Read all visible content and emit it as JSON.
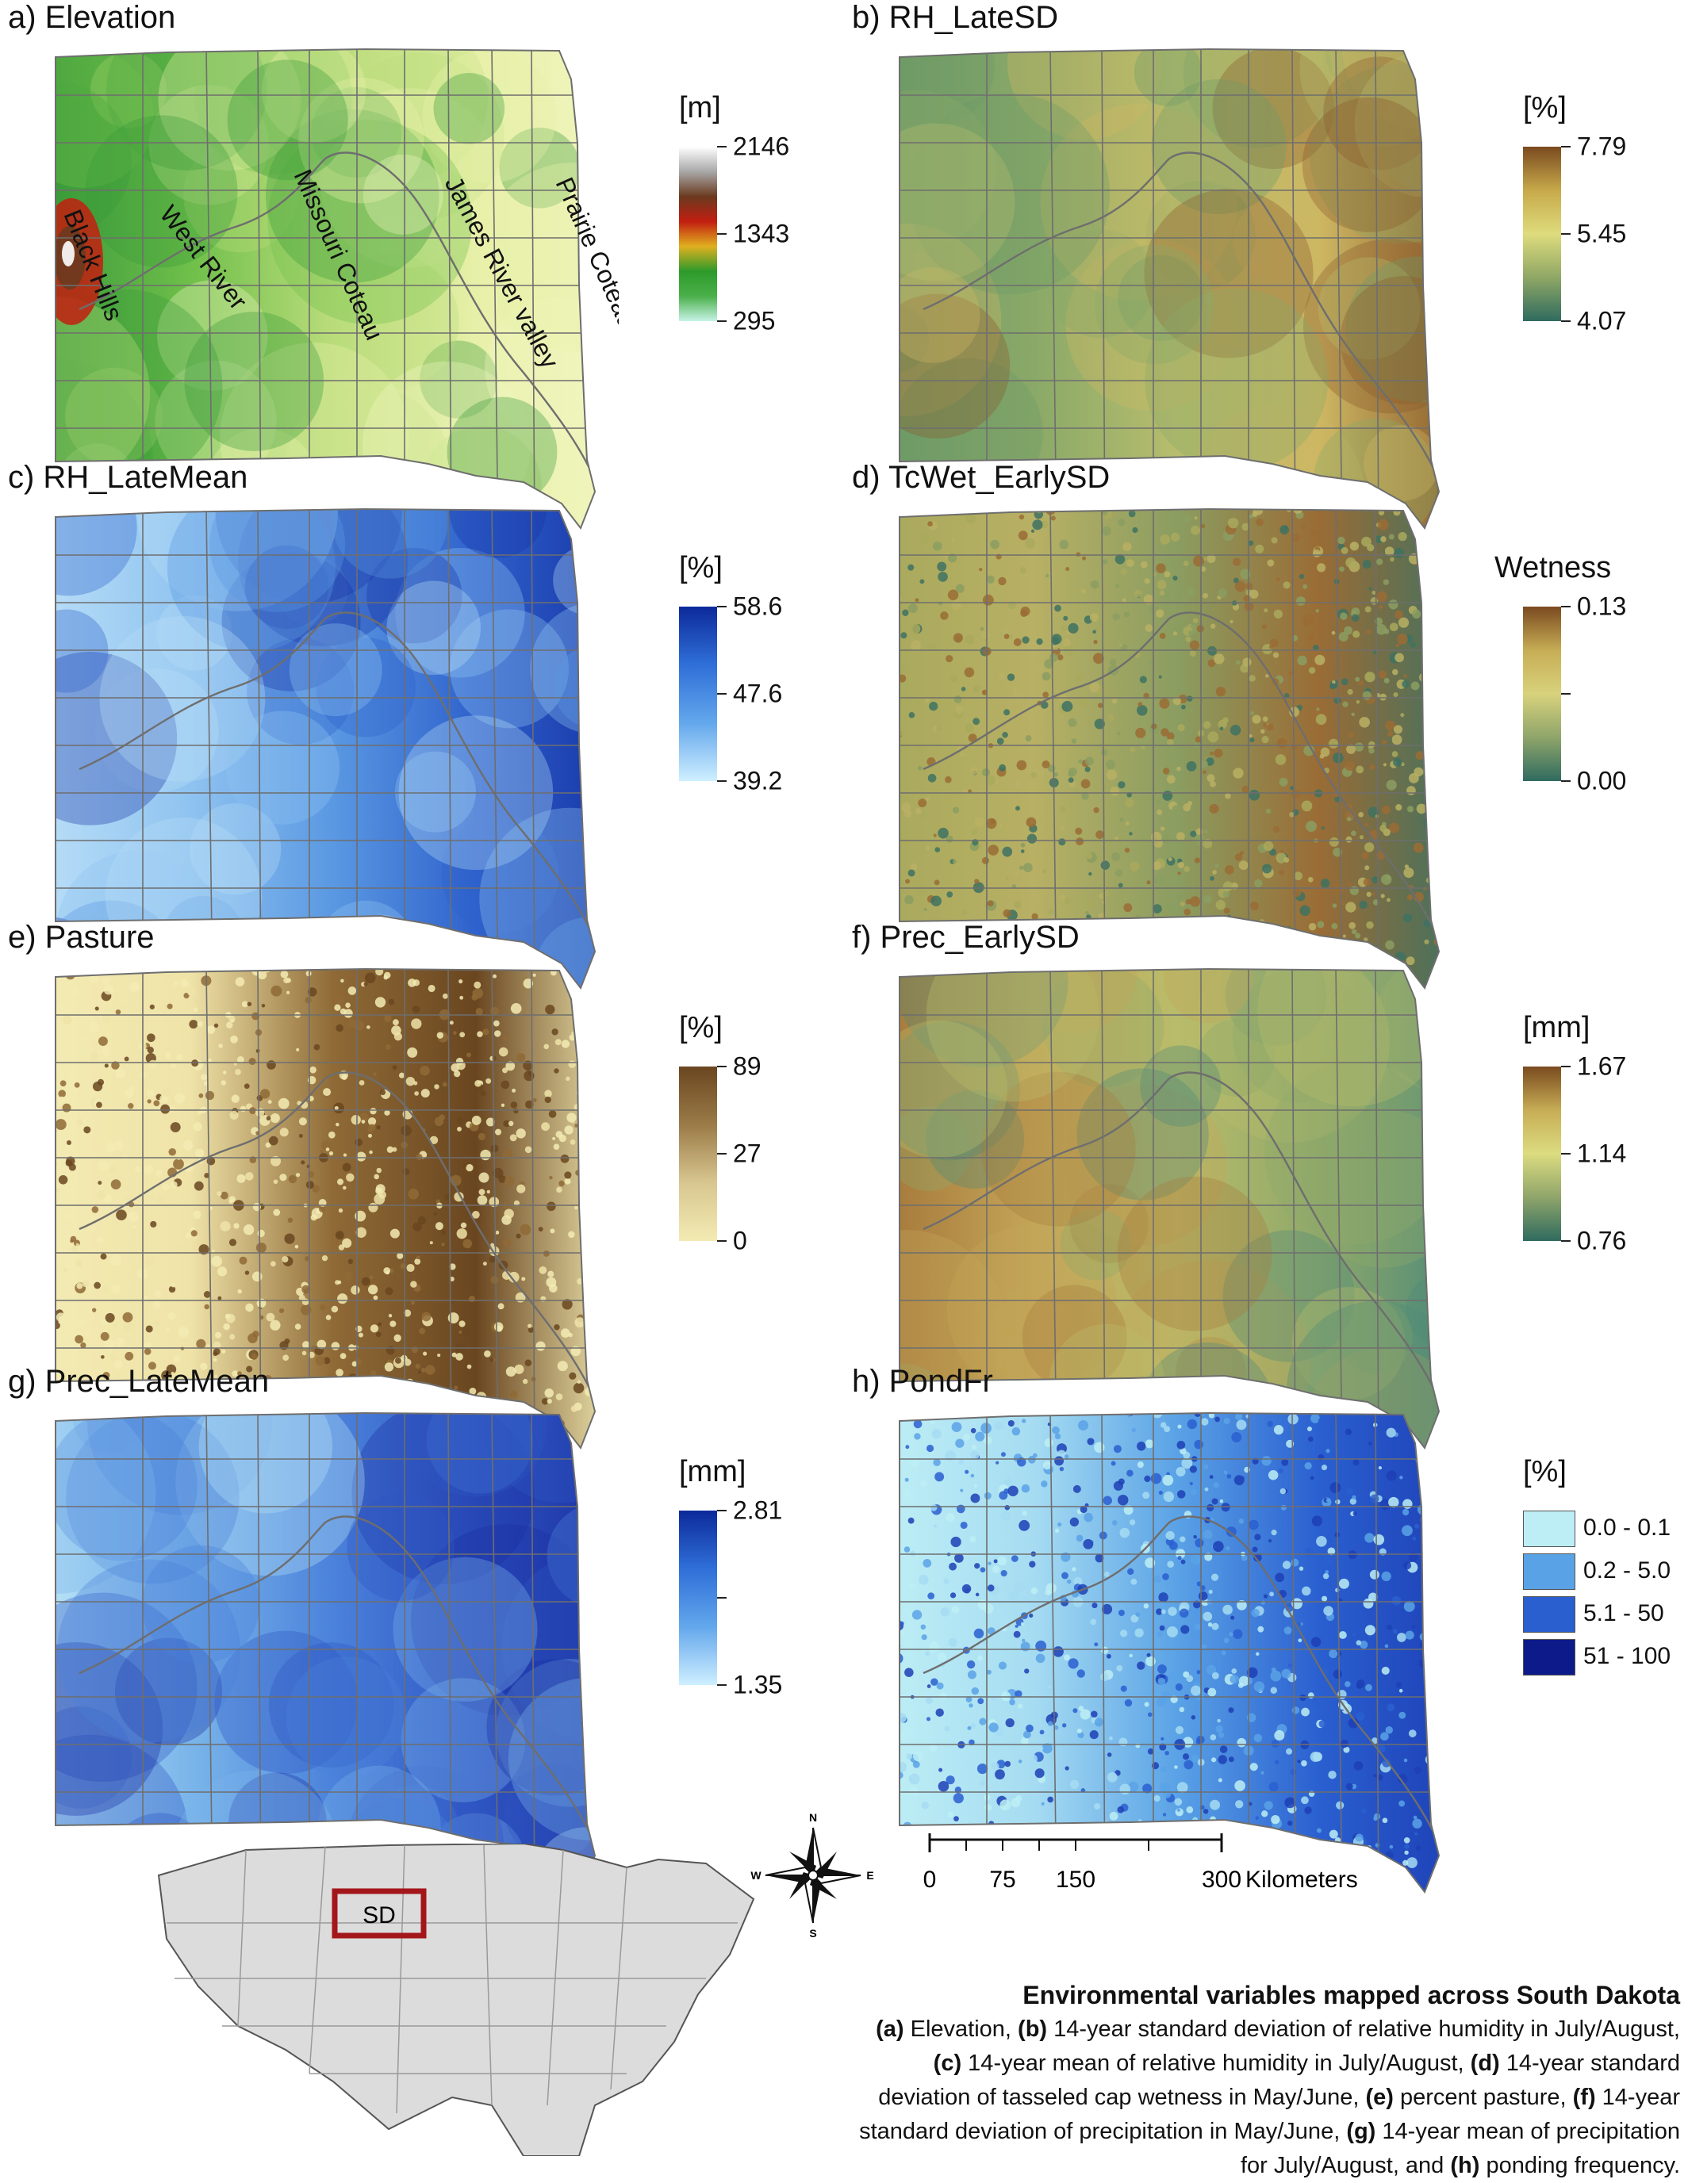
{
  "panels": [
    {
      "title": "a) Elevation",
      "unit": "[m]",
      "legend_type": "gradient",
      "legend_labels": [
        "2146",
        "1343",
        "295"
      ],
      "colors": [
        "#ffffff",
        "#a8a8a8",
        "#6b3a1f",
        "#c21e10",
        "#e0b020",
        "#2d9a2a",
        "#4bb04a",
        "#c6f3e6"
      ],
      "map_colors": [
        "#3a9a3a",
        "#6fbf4a",
        "#b9dc7a",
        "#e7f0a8",
        "#f2f5c0"
      ],
      "region_labels": [
        "Black Hills",
        "West River",
        "Missouri Coteau",
        "James River valley",
        "Prairie Coteau"
      ]
    },
    {
      "title": "b) RH_LateSD",
      "unit": "[%]",
      "legend_type": "gradient",
      "legend_labels": [
        "7.79",
        "5.45",
        "4.07"
      ],
      "colors": [
        "#7a4a1f",
        "#c7a94a",
        "#dedc7d",
        "#8fa765",
        "#2f6b5f"
      ],
      "map_colors": [
        "#6e9a68",
        "#8aa968",
        "#b7bd6d",
        "#cdb763",
        "#8a5a2a"
      ]
    },
    {
      "title": "c) RH_LateMean",
      "unit": "[%]",
      "legend_type": "gradient",
      "legend_labels": [
        "58.6",
        "47.6",
        "39.2"
      ],
      "colors": [
        "#0c2a9a",
        "#2f6fd8",
        "#63a7ec",
        "#cfefff"
      ],
      "map_colors": [
        "#b7ddf7",
        "#8fc3f0",
        "#5a98e2",
        "#2f62cc",
        "#1634a5"
      ]
    },
    {
      "title": "d) TcWet_EarlySD",
      "unit": "Wetness",
      "legend_type": "gradient",
      "legend_labels": [
        "0.13",
        "",
        "0.00"
      ],
      "colors": [
        "#7a4a1f",
        "#c7ad55",
        "#d8d27c",
        "#8fa56a",
        "#2f6b5f"
      ],
      "map_colors": [
        "#a9a95d",
        "#b8b064",
        "#8b9d61",
        "#9a6c35",
        "#3e7262"
      ]
    },
    {
      "title": "e) Pasture",
      "unit": "[%]",
      "legend_type": "gradient",
      "legend_labels": [
        "89",
        "27",
        "0"
      ],
      "colors": [
        "#6a4620",
        "#9b7b48",
        "#d8c690",
        "#f3ebb3"
      ],
      "map_colors": [
        "#f3ebb3",
        "#efe3a8",
        "#8f6a36",
        "#6a4620",
        "#f3ebb3"
      ]
    },
    {
      "title": "f) Prec_EarlySD",
      "unit": "[mm]",
      "legend_type": "gradient",
      "legend_labels": [
        "1.67",
        "1.14",
        "0.76"
      ],
      "colors": [
        "#7a4a1f",
        "#c7ad55",
        "#dcdc80",
        "#8fa56a",
        "#2f6b5f"
      ],
      "map_colors": [
        "#a77a3c",
        "#c4a658",
        "#b9bc6a",
        "#8ea86a",
        "#4d8a78"
      ]
    },
    {
      "title": "g) Prec_LateMean",
      "unit": "[mm]",
      "legend_type": "gradient",
      "legend_labels": [
        "2.81",
        "",
        "1.35"
      ],
      "colors": [
        "#0c2a9a",
        "#2f6fd8",
        "#63a7ec",
        "#cfefff"
      ],
      "map_colors": [
        "#b7e2f7",
        "#7ab5ea",
        "#4b82db",
        "#2f55c3",
        "#1b2fa0"
      ]
    },
    {
      "title": "h) PondFr",
      "unit": "[%]",
      "legend_type": "classes",
      "classes": [
        {
          "label": "0.0 - 0.1",
          "color": "#bdeef5"
        },
        {
          "label": "0.2 - 5.0",
          "color": "#5aa2e6"
        },
        {
          "label": "5.1 - 50",
          "color": "#2a5fd0"
        },
        {
          "label": "51  -  100",
          "color": "#0c1a8a"
        }
      ],
      "map_colors": [
        "#bdeef5",
        "#a6dcf2",
        "#5aa2e6",
        "#2a5fd0",
        "#1d3fb5"
      ]
    }
  ],
  "compass": {
    "n": "N",
    "s": "S",
    "e": "E",
    "w": "W"
  },
  "scalebar": {
    "labels": [
      "0",
      "75",
      "150",
      "300"
    ],
    "unit": "Kilometers"
  },
  "inset": {
    "label": "SD"
  },
  "caption": {
    "title": "Environmental variables mapped across South Dakota",
    "parts": [
      {
        "b": "(a)",
        "t": " Elevation, "
      },
      {
        "b": "(b)",
        "t": " 14-year standard deviation of relative humidity in July/August, "
      },
      {
        "b": "(c)",
        "t": " 14-year mean of relative humidity in July/August, "
      },
      {
        "b": "(d)",
        "t": " 14-year standard deviation of tasseled cap wetness in May/June, "
      },
      {
        "b": "(e)",
        "t": " percent pasture, "
      },
      {
        "b": "(f)",
        "t": " 14-year standard deviation of precipitation in May/June, "
      },
      {
        "b": "(g)",
        "t": " 14-year mean of precipitation for July/August, and "
      },
      {
        "b": "(h)",
        "t": " ponding frequency."
      }
    ]
  }
}
